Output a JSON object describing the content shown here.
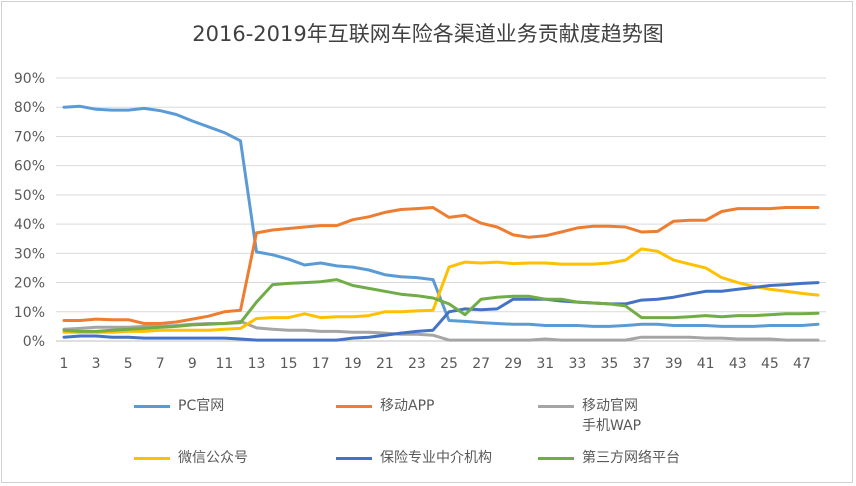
{
  "chart_data": {
    "type": "line",
    "title": "2016-2019年互联网车险各渠道业务贡献度趋势图",
    "xlabel": "",
    "ylabel": "",
    "ylim": [
      0,
      90
    ],
    "grid": true,
    "legend_position": "bottom",
    "x": [
      1,
      2,
      3,
      4,
      5,
      6,
      7,
      8,
      9,
      10,
      11,
      12,
      13,
      14,
      15,
      16,
      17,
      18,
      19,
      20,
      21,
      22,
      23,
      24,
      25,
      26,
      27,
      28,
      29,
      30,
      31,
      32,
      33,
      34,
      35,
      36,
      37,
      38,
      39,
      40,
      41,
      42,
      43,
      44,
      45,
      46,
      47,
      48
    ],
    "x_tick_labels": [
      "1",
      "3",
      "5",
      "7",
      "9",
      "11",
      "13",
      "15",
      "17",
      "19",
      "21",
      "23",
      "25",
      "27",
      "29",
      "31",
      "33",
      "35",
      "37",
      "39",
      "41",
      "43",
      "45",
      "47"
    ],
    "y_tick_labels": [
      "0%",
      "10%",
      "20%",
      "30%",
      "40%",
      "50%",
      "60%",
      "70%",
      "80%",
      "90%"
    ],
    "series": [
      {
        "name": "PC官网",
        "color": "#5B9BD5",
        "values": [
          80,
          80.3,
          79.3,
          79,
          79,
          79.6,
          78.8,
          77.5,
          75.3,
          73.3,
          71.3,
          68.5,
          30.5,
          29.5,
          28,
          26,
          26.7,
          25.7,
          25.3,
          24.3,
          22.7,
          22,
          21.7,
          21,
          7,
          6.7,
          6.3,
          6,
          5.7,
          5.7,
          5.3,
          5.3,
          5.3,
          5,
          5,
          5.3,
          5.7,
          5.7,
          5.3,
          5.3,
          5.3,
          5,
          5,
          5,
          5.3,
          5.3,
          5.3,
          5.7
        ]
      },
      {
        "name": "移动APP",
        "color": "#ED7D31",
        "values": [
          7,
          7,
          7.5,
          7.3,
          7.3,
          6,
          6,
          6.5,
          7.5,
          8.5,
          10,
          10.5,
          37,
          38,
          38.5,
          39,
          39.5,
          39.5,
          41.5,
          42.5,
          44,
          45,
          45.3,
          45.7,
          42.3,
          43,
          40.3,
          39,
          36.3,
          35.5,
          36,
          37.3,
          38.7,
          39.3,
          39.3,
          39,
          37.3,
          37.5,
          41,
          41.3,
          41.3,
          44.3,
          45.3,
          45.3,
          45.3,
          45.7,
          45.7,
          45.7
        ]
      },
      {
        "name": "移动官网\n手机WAP",
        "color": "#A5A5A5",
        "values": [
          4,
          4.3,
          4.7,
          4.7,
          4.7,
          5,
          5,
          5.3,
          5.7,
          6,
          6,
          6.7,
          4.5,
          4,
          3.7,
          3.7,
          3.3,
          3.3,
          3,
          3,
          2.7,
          2.3,
          2.3,
          2,
          0.3,
          0.3,
          0.3,
          0.3,
          0.3,
          0.3,
          0.7,
          0.3,
          0.3,
          0.3,
          0.3,
          0.3,
          1.3,
          1.3,
          1.3,
          1.3,
          1,
          1,
          0.7,
          0.7,
          0.7,
          0.3,
          0.3,
          0.3
        ]
      },
      {
        "name": "微信公众号",
        "color": "#FFC000",
        "values": [
          3,
          3,
          3,
          3,
          3.3,
          3.3,
          3.7,
          3.7,
          3.7,
          3.7,
          4,
          4.3,
          7.7,
          8,
          8,
          9.3,
          8,
          8.3,
          8.3,
          8.7,
          10,
          10,
          10.3,
          10.5,
          25.3,
          27,
          26.7,
          27,
          26.5,
          26.7,
          26.7,
          26.3,
          26.3,
          26.3,
          26.7,
          27.7,
          31.5,
          30.7,
          27.7,
          26.3,
          25,
          21.7,
          20,
          18.7,
          17.7,
          17,
          16.3,
          15.7
        ]
      },
      {
        "name": "保险专业中介机构",
        "color": "#4472C4",
        "values": [
          1.3,
          1.7,
          1.7,
          1.3,
          1.3,
          1,
          1,
          1,
          1,
          1,
          1,
          0.7,
          0.3,
          0.3,
          0.3,
          0.3,
          0.3,
          0.3,
          1,
          1.3,
          2,
          2.7,
          3.3,
          3.7,
          10,
          11,
          10.7,
          11,
          14.3,
          14.3,
          14.3,
          13.7,
          13.3,
          13,
          12.7,
          12.7,
          14,
          14.3,
          15,
          16,
          17,
          17,
          17.7,
          18.3,
          19,
          19.3,
          19.7,
          20
        ]
      },
      {
        "name": "第三方网络平台",
        "color": "#70AD47",
        "values": [
          3.7,
          3.3,
          3.3,
          3.7,
          4,
          4.3,
          4.7,
          5,
          5.5,
          5.7,
          6,
          6.3,
          13.3,
          19.3,
          19.7,
          20,
          20.3,
          21,
          19,
          18,
          17,
          16,
          15.5,
          14.7,
          12.7,
          9,
          14.3,
          15,
          15.3,
          15.3,
          14.3,
          14.3,
          13.3,
          13,
          12.7,
          12,
          8,
          8,
          8,
          8.3,
          8.7,
          8.3,
          8.7,
          8.7,
          9,
          9.3,
          9.3,
          9.5
        ]
      }
    ]
  }
}
